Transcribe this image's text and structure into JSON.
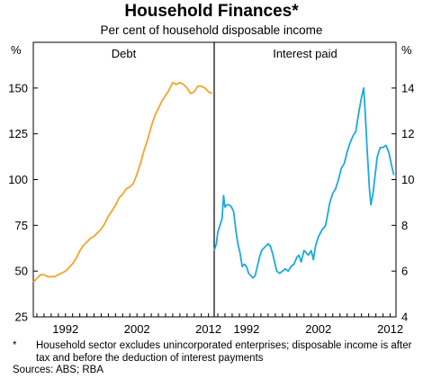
{
  "title": "Household Finances*",
  "subtitle": "Per cent of household disposable income",
  "unit_left": "%",
  "unit_right": "%",
  "notes": {
    "marker": "*",
    "footnote": "Household sector excludes unincorporated enterprises; disposable income is after tax and before the deduction of interest payments",
    "sources": "Sources: ABS; RBA"
  },
  "colors": {
    "debt": "#F7A32B",
    "interest": "#1CA9E1",
    "axis": "#000000"
  },
  "chart_data": [
    {
      "type": "line",
      "panel_label": "Debt",
      "axis": "left",
      "ylim": [
        25,
        175
      ],
      "yticks": [
        25,
        50,
        75,
        100,
        125,
        150
      ],
      "xlim": [
        1987.5,
        2012.8
      ],
      "xticks": [
        1992,
        2002,
        2012
      ],
      "grid": false,
      "series": [
        {
          "color": "#F7A32B",
          "points": [
            [
              1987.5,
              44
            ],
            [
              1988.0,
              46
            ],
            [
              1988.5,
              48
            ],
            [
              1989.0,
              48
            ],
            [
              1989.5,
              47
            ],
            [
              1990.0,
              47
            ],
            [
              1990.5,
              47
            ],
            [
              1991.0,
              48
            ],
            [
              1991.5,
              49
            ],
            [
              1992.0,
              50
            ],
            [
              1992.5,
              52
            ],
            [
              1993.0,
              54
            ],
            [
              1993.5,
              57
            ],
            [
              1994.0,
              61
            ],
            [
              1994.5,
              64
            ],
            [
              1995.0,
              66
            ],
            [
              1995.5,
              68
            ],
            [
              1996.0,
              69
            ],
            [
              1996.5,
              71
            ],
            [
              1997.0,
              73
            ],
            [
              1997.5,
              76
            ],
            [
              1998.0,
              80
            ],
            [
              1998.5,
              83
            ],
            [
              1999.0,
              86
            ],
            [
              1999.5,
              90
            ],
            [
              2000.0,
              92
            ],
            [
              2000.5,
              95
            ],
            [
              2001.0,
              96
            ],
            [
              2001.5,
              98
            ],
            [
              2002.0,
              103
            ],
            [
              2002.5,
              109
            ],
            [
              2003.0,
              116
            ],
            [
              2003.5,
              122
            ],
            [
              2004.0,
              129
            ],
            [
              2004.5,
              135
            ],
            [
              2005.0,
              139
            ],
            [
              2005.5,
              143
            ],
            [
              2006.0,
              146
            ],
            [
              2006.5,
              149
            ],
            [
              2007.0,
              153
            ],
            [
              2007.5,
              152
            ],
            [
              2008.0,
              153
            ],
            [
              2008.5,
              152
            ],
            [
              2009.0,
              150
            ],
            [
              2009.5,
              147
            ],
            [
              2010.0,
              148
            ],
            [
              2010.5,
              151
            ],
            [
              2011.0,
              151
            ],
            [
              2011.5,
              150
            ],
            [
              2012.0,
              148
            ],
            [
              2012.5,
              147
            ]
          ]
        }
      ]
    },
    {
      "type": "line",
      "panel_label": "Interest paid",
      "axis": "right",
      "ylim": [
        4,
        16
      ],
      "yticks": [
        4,
        6,
        8,
        10,
        12,
        14
      ],
      "xlim": [
        1987.5,
        2012.8
      ],
      "xticks": [
        1992,
        2002,
        2012
      ],
      "grid": false,
      "series": [
        {
          "color": "#1CA9E1",
          "points": [
            [
              1987.5,
              6.9
            ],
            [
              1987.8,
              7.2
            ],
            [
              1988.0,
              7.7
            ],
            [
              1988.3,
              8.0
            ],
            [
              1988.6,
              8.3
            ],
            [
              1988.8,
              9.3
            ],
            [
              1989.0,
              8.8
            ],
            [
              1989.3,
              8.9
            ],
            [
              1989.6,
              8.9
            ],
            [
              1989.9,
              8.8
            ],
            [
              1990.2,
              8.6
            ],
            [
              1990.5,
              7.8
            ],
            [
              1990.8,
              7.2
            ],
            [
              1991.1,
              6.8
            ],
            [
              1991.4,
              6.2
            ],
            [
              1991.7,
              6.3
            ],
            [
              1992.0,
              6.2
            ],
            [
              1992.3,
              5.9
            ],
            [
              1992.6,
              5.8
            ],
            [
              1992.9,
              5.7
            ],
            [
              1993.2,
              5.8
            ],
            [
              1993.5,
              6.2
            ],
            [
              1993.8,
              6.6
            ],
            [
              1994.1,
              6.9
            ],
            [
              1994.4,
              7.0
            ],
            [
              1994.7,
              7.1
            ],
            [
              1995.0,
              7.2
            ],
            [
              1995.3,
              7.1
            ],
            [
              1995.6,
              6.8
            ],
            [
              1995.9,
              6.4
            ],
            [
              1996.2,
              6.0
            ],
            [
              1996.6,
              5.9
            ],
            [
              1997.0,
              6.0
            ],
            [
              1997.4,
              6.1
            ],
            [
              1997.8,
              6.0
            ],
            [
              1998.2,
              6.2
            ],
            [
              1998.6,
              6.3
            ],
            [
              1999.0,
              6.6
            ],
            [
              1999.3,
              6.7
            ],
            [
              1999.6,
              6.4
            ],
            [
              2000.0,
              6.9
            ],
            [
              2000.3,
              6.8
            ],
            [
              2000.6,
              6.7
            ],
            [
              2001.0,
              6.9
            ],
            [
              2001.3,
              6.5
            ],
            [
              2001.6,
              7.1
            ],
            [
              2002.0,
              7.5
            ],
            [
              2002.5,
              7.8
            ],
            [
              2003.0,
              8.0
            ],
            [
              2003.3,
              8.5
            ],
            [
              2003.6,
              9.0
            ],
            [
              2004.0,
              9.4
            ],
            [
              2004.4,
              9.6
            ],
            [
              2004.8,
              10.0
            ],
            [
              2005.2,
              10.5
            ],
            [
              2005.6,
              10.7
            ],
            [
              2006.0,
              11.2
            ],
            [
              2006.4,
              11.6
            ],
            [
              2006.8,
              11.9
            ],
            [
              2007.2,
              12.1
            ],
            [
              2007.6,
              12.9
            ],
            [
              2008.0,
              13.6
            ],
            [
              2008.3,
              14.0
            ],
            [
              2008.5,
              13.0
            ],
            [
              2008.8,
              11.2
            ],
            [
              2009.1,
              9.6
            ],
            [
              2009.3,
              8.9
            ],
            [
              2009.6,
              9.4
            ],
            [
              2009.9,
              10.2
            ],
            [
              2010.2,
              11.0
            ],
            [
              2010.6,
              11.4
            ],
            [
              2011.0,
              11.4
            ],
            [
              2011.4,
              11.5
            ],
            [
              2011.8,
              11.2
            ],
            [
              2012.2,
              10.6
            ],
            [
              2012.5,
              10.2
            ]
          ]
        }
      ]
    }
  ]
}
